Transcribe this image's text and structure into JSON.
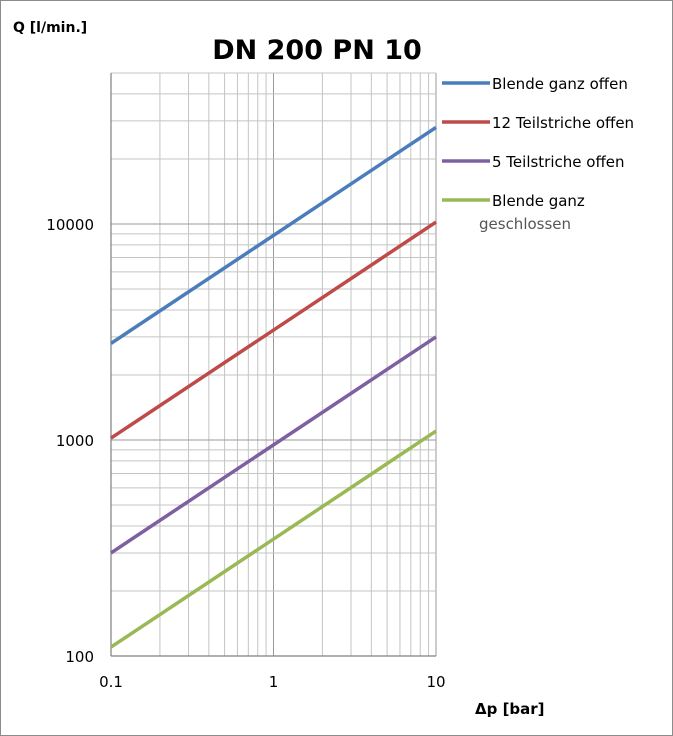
{
  "chart_data": {
    "type": "line",
    "title": "DN 200 PN 10",
    "ylabel": "Q [l/min.]",
    "xlabel": "Δp [bar]",
    "x_scale": "log",
    "y_scale": "log",
    "xlim": [
      0.1,
      10
    ],
    "ylim": [
      100,
      50000
    ],
    "grid": true,
    "legend_position": "right",
    "x_ticks": [
      {
        "value": 0.1,
        "label": "0.1"
      },
      {
        "value": 1,
        "label": "1"
      },
      {
        "value": 10,
        "label": "10"
      }
    ],
    "y_ticks": [
      {
        "value": 100,
        "label": "100"
      },
      {
        "value": 1000,
        "label": "1000"
      },
      {
        "value": 10000,
        "label": "10000"
      }
    ],
    "series": [
      {
        "name": "Blende ganz offen",
        "color": "#4a7ebb",
        "x": [
          0.1,
          10
        ],
        "y": [
          2800,
          28000
        ]
      },
      {
        "name": "12 Teilstriche offen",
        "color": "#be4b48",
        "x": [
          0.1,
          10
        ],
        "y": [
          1020,
          10200
        ]
      },
      {
        "name": "5 Teilstriche offen",
        "color": "#7d60a0",
        "x": [
          0.1,
          10
        ],
        "y": [
          300,
          3000
        ]
      },
      {
        "name": "Blende ganz geschlossen",
        "legend_lines": [
          "Blende ganz",
          "geschlossen"
        ],
        "color": "#98b954",
        "x": [
          0.1,
          10
        ],
        "y": [
          110,
          1100
        ]
      }
    ]
  }
}
